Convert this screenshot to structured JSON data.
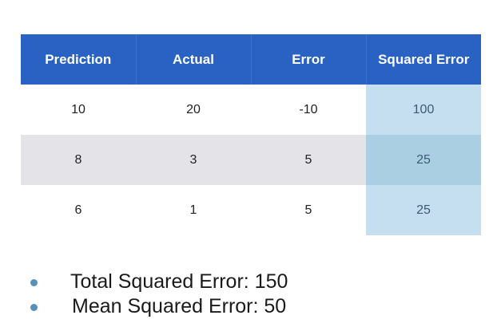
{
  "table": {
    "headers": [
      "Prediction",
      "Actual",
      "Error",
      "Squared Error"
    ],
    "rows": [
      [
        "10",
        "20",
        "-10",
        "100"
      ],
      [
        "8",
        "3",
        "5",
        "25"
      ],
      [
        "6",
        "1",
        "5",
        "25"
      ]
    ]
  },
  "summary": [
    "Total Squared Error: 150",
    "Mean Squared Error: 50"
  ],
  "colors": {
    "header_bg": "#2a62c3",
    "highlight_light": "#c5dff0",
    "highlight_dark": "#aacfe2",
    "alt_row": "#e4e4e8",
    "bullet": "#5a8fbc"
  }
}
